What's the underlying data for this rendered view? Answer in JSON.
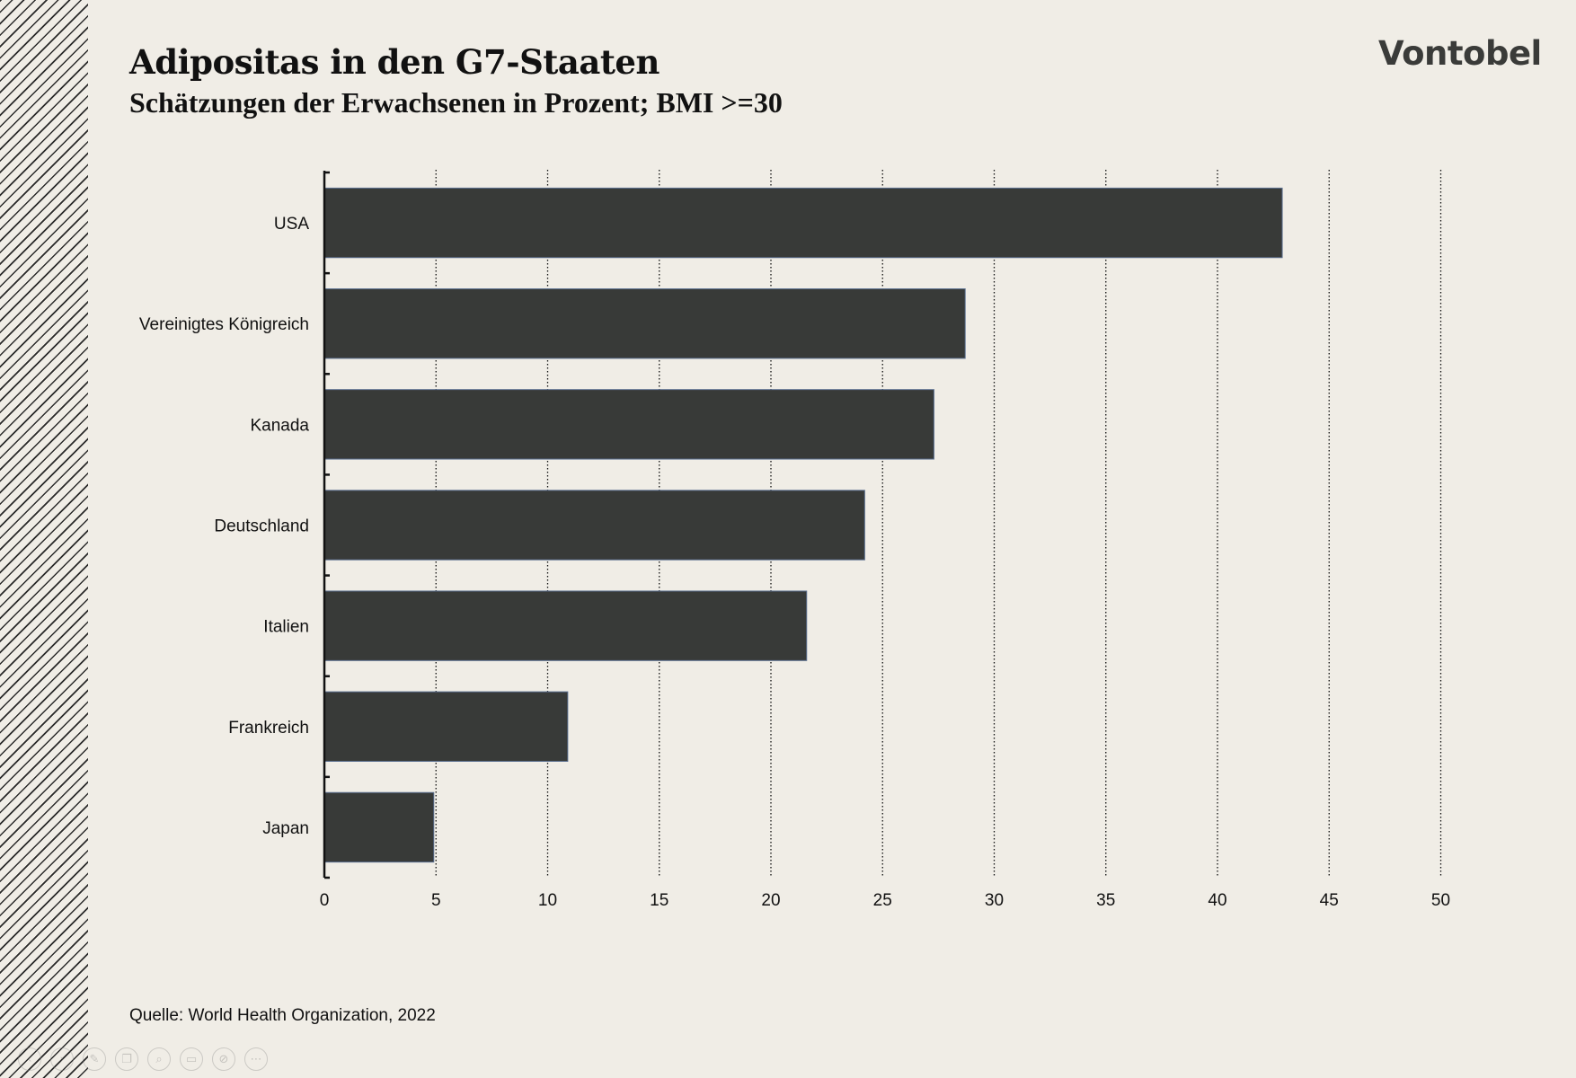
{
  "header": {
    "title": "Adipositas in den G7-Staaten",
    "subtitle": "Schätzungen der Erwachsenen in Prozent; BMI >=30",
    "brand": "Vontobel"
  },
  "footer": {
    "source": "Quelle: World Health Organization, 2022"
  },
  "toolbar": {
    "buttons": [
      {
        "name": "prev-slide-button",
        "icon": "arrow-left-icon",
        "glyph": "‹"
      },
      {
        "name": "next-slide-button",
        "icon": "arrow-right-icon",
        "glyph": "›"
      },
      {
        "name": "edit-button",
        "icon": "pen-icon",
        "glyph": "✎"
      },
      {
        "name": "copy-button",
        "icon": "copy-icon",
        "glyph": "❐"
      },
      {
        "name": "zoom-button",
        "icon": "magnifier-icon",
        "glyph": "⌕"
      },
      {
        "name": "subtitles-button",
        "icon": "subtitles-icon",
        "glyph": "▭"
      },
      {
        "name": "camera-off-button",
        "icon": "camera-off-icon",
        "glyph": "⊘"
      },
      {
        "name": "more-button",
        "icon": "more-icon",
        "glyph": "⋯"
      }
    ]
  },
  "colors": {
    "background": "#f0ede6",
    "bar": "#383a38",
    "bar_outline": "#5b6f8f",
    "grid": "#111111"
  },
  "chart_data": {
    "type": "bar",
    "orientation": "horizontal",
    "title": "Adipositas in den G7-Staaten",
    "subtitle": "Schätzungen der Erwachsenen in Prozent; BMI >=30",
    "categories": [
      "USA",
      "Vereinigtes Königreich",
      "Kanada",
      "Deutschland",
      "Italien",
      "Frankreich",
      "Japan"
    ],
    "values": [
      42.9,
      28.7,
      27.3,
      24.2,
      21.6,
      10.9,
      4.9
    ],
    "xlim": [
      0,
      50
    ],
    "xticks": [
      0,
      5,
      10,
      15,
      20,
      25,
      30,
      35,
      40,
      45,
      50
    ],
    "xtick_labels": [
      "0",
      "5",
      "10",
      "15",
      "20",
      "25",
      "30",
      "35",
      "40",
      "45",
      "50"
    ],
    "grid": "vertical dotted",
    "legend": "none"
  }
}
